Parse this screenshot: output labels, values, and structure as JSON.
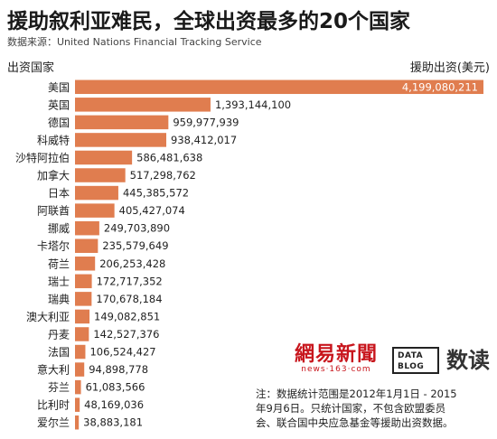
{
  "title": "援助叙利亚难民，全球出资最多的20个国家",
  "source": "数据来源：United Nations Financial Tracking Service",
  "header": {
    "left": "出资国家",
    "right": "援助出资(美元)"
  },
  "colors": {
    "bar": "#e07d4f",
    "label": "#222222",
    "top_label": "#ffffff"
  },
  "logos": {
    "netease_cn": "網易新聞",
    "netease_en": "news·163·com",
    "datablog_line1": "DATA",
    "datablog_line2": "BLOG",
    "datablog_cn": "数读"
  },
  "note": {
    "line1": "注：数据统计范围是2012年1月1日 - 2015",
    "line2": "年9月6日。只统计国家，不包含欧盟委员",
    "line3": "会、联合国中央应急基金等援助出资数据。"
  },
  "chart_data": {
    "type": "bar",
    "orientation": "horizontal",
    "categories": [
      "美国",
      "英国",
      "德国",
      "科威特",
      "沙特阿拉伯",
      "加拿大",
      "日本",
      "阿联酋",
      "挪威",
      "卡塔尔",
      "荷兰",
      "瑞士",
      "瑞典",
      "澳大利亚",
      "丹麦",
      "法国",
      "意大利",
      "芬兰",
      "比利时",
      "爱尔兰"
    ],
    "values": [
      4199080211,
      1393144100,
      959977939,
      938412017,
      586481638,
      517298762,
      445385572,
      405427074,
      249703890,
      235579649,
      206253428,
      172717352,
      170678184,
      149082851,
      142527376,
      106524427,
      94898778,
      61083566,
      48169036,
      38883181
    ],
    "value_labels": [
      "4,199,080,211",
      "1,393,144,100",
      "959,977,939",
      "938,412,017",
      "586,481,638",
      "517,298,762",
      "445,385,572",
      "405,427,074",
      "249,703,890",
      "235,579,649",
      "206,253,428",
      "172,717,352",
      "170,678,184",
      "149,082,851",
      "142,527,376",
      "106,524,427",
      "94,898,778",
      "61,083,566",
      "48,169,036",
      "38,883,181"
    ],
    "title": "援助叙利亚难民，全球出资最多的20个国家",
    "xlabel": "援助出资(美元)",
    "ylabel": "出资国家",
    "xlim": [
      0,
      4199080211
    ],
    "grid": false,
    "legend": "none"
  }
}
